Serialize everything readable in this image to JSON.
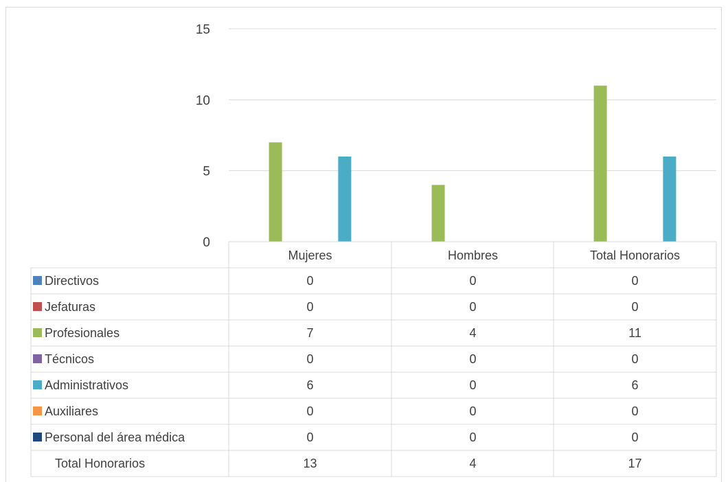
{
  "chart_data": {
    "type": "bar",
    "title": "",
    "xlabel": "",
    "ylabel": "",
    "ylim": [
      0,
      15
    ],
    "yticks": [
      0,
      5,
      10,
      15
    ],
    "grid": true,
    "legend": "data-table",
    "categories": [
      "Mujeres",
      "Hombres",
      "Total Honorarios"
    ],
    "series": [
      {
        "name": "Directivos",
        "color": "#4f81bd",
        "values": [
          0,
          0,
          0
        ]
      },
      {
        "name": "Jefaturas",
        "color": "#c0504d",
        "values": [
          0,
          0,
          0
        ]
      },
      {
        "name": "Profesionales",
        "color": "#9bbb59",
        "values": [
          7,
          4,
          11
        ]
      },
      {
        "name": "Técnicos",
        "color": "#8064a2",
        "values": [
          0,
          0,
          0
        ]
      },
      {
        "name": "Administrativos",
        "color": "#4bacc6",
        "values": [
          6,
          0,
          6
        ]
      },
      {
        "name": "Auxiliares",
        "color": "#f79646",
        "values": [
          0,
          0,
          0
        ]
      },
      {
        "name": "Personal del área médica",
        "color": "#1f497d",
        "values": [
          0,
          0,
          0
        ]
      }
    ],
    "totals": {
      "label": "Total Honorarios",
      "values": [
        13,
        4,
        17
      ]
    }
  }
}
